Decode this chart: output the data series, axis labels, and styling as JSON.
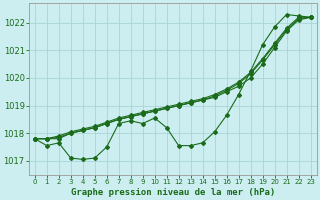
{
  "title": "Graphe pression niveau de la mer (hPa)",
  "background_color": "#cceef0",
  "grid_color": "#aad4d8",
  "line_color": "#1a6b1a",
  "xlim": [
    -0.5,
    23.5
  ],
  "ylim": [
    1016.5,
    1022.7
  ],
  "yticks": [
    1017,
    1018,
    1019,
    1020,
    1021,
    1022
  ],
  "xticks": [
    0,
    1,
    2,
    3,
    4,
    5,
    6,
    7,
    8,
    9,
    10,
    11,
    12,
    13,
    14,
    15,
    16,
    17,
    18,
    19,
    20,
    21,
    22,
    23
  ],
  "series_straight1": [
    1017.8,
    1017.8,
    1017.8,
    1018.0,
    1018.1,
    1018.2,
    1018.35,
    1018.5,
    1018.6,
    1018.7,
    1018.8,
    1018.9,
    1019.0,
    1019.1,
    1019.2,
    1019.3,
    1019.5,
    1019.7,
    1020.0,
    1020.5,
    1021.1,
    1021.7,
    1022.1,
    1022.2
  ],
  "series_straight2": [
    1017.8,
    1017.8,
    1017.85,
    1018.0,
    1018.1,
    1018.2,
    1018.35,
    1018.5,
    1018.6,
    1018.7,
    1018.8,
    1018.9,
    1019.0,
    1019.1,
    1019.2,
    1019.35,
    1019.55,
    1019.8,
    1020.15,
    1020.65,
    1021.2,
    1021.75,
    1022.15,
    1022.2
  ],
  "series_straight3": [
    1017.8,
    1017.8,
    1017.9,
    1018.05,
    1018.15,
    1018.25,
    1018.4,
    1018.55,
    1018.65,
    1018.75,
    1018.85,
    1018.95,
    1019.05,
    1019.15,
    1019.25,
    1019.4,
    1019.6,
    1019.85,
    1020.2,
    1020.7,
    1021.25,
    1021.8,
    1022.2,
    1022.2
  ],
  "series_wavy": [
    1017.8,
    1017.55,
    1017.65,
    1017.1,
    1017.05,
    1017.1,
    1017.5,
    1018.35,
    1018.45,
    1018.35,
    1018.55,
    1018.2,
    1017.55,
    1017.55,
    1017.65,
    1018.05,
    1018.65,
    1019.4,
    1020.25,
    1021.2,
    1021.85,
    1022.3,
    1022.25,
    1022.2
  ]
}
